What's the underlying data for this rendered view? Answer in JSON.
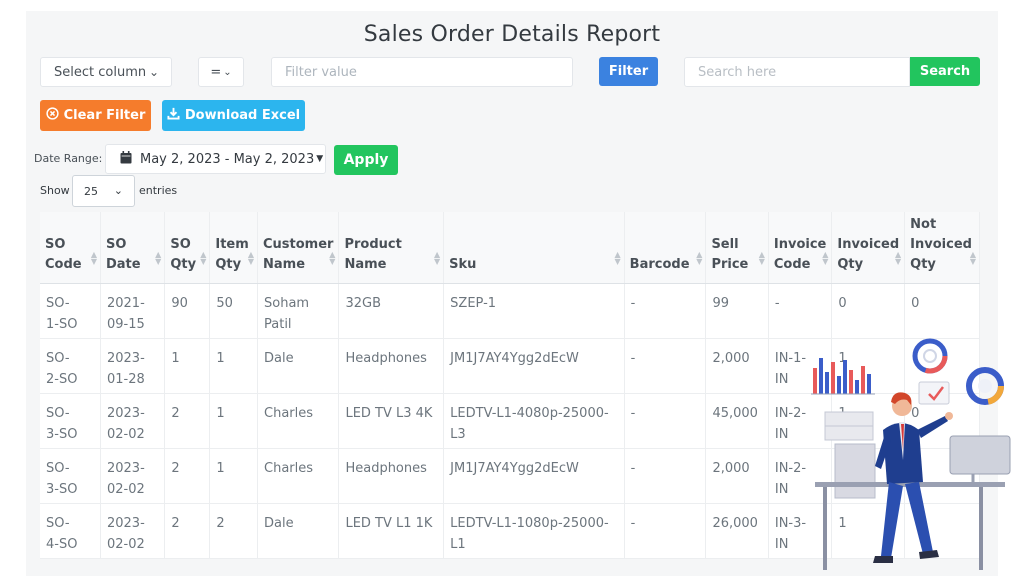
{
  "report": {
    "title": "Sales Order Details Report"
  },
  "filters": {
    "column_select": "Select column",
    "operator": "=",
    "filter_placeholder": "Filter value",
    "filter_button": "Filter",
    "search_placeholder": "Search here",
    "search_button": "Search",
    "clear_button": "Clear Filter",
    "download_button": "Download Excel"
  },
  "date_range": {
    "label": "Date Range:",
    "value": "May 2, 2023 - May 2, 2023",
    "apply_button": "Apply"
  },
  "pagination": {
    "show_label": "Show",
    "page_size": "25",
    "entries_label": "entries"
  },
  "colors": {
    "filter": "#3b82e0",
    "search": "#22c55e",
    "clear": "#f57c2c",
    "download": "#2cb5ee",
    "apply": "#22c55e"
  },
  "table": {
    "columns": [
      [
        "SO",
        "Code"
      ],
      [
        "SO Date"
      ],
      [
        "SO",
        "Qty"
      ],
      [
        "Item",
        "Qty"
      ],
      [
        "Customer",
        "Name"
      ],
      [
        "Product Name"
      ],
      [
        "Sku"
      ],
      [
        "Barcode"
      ],
      [
        "Sell",
        "Price"
      ],
      [
        "Invoice",
        "Code"
      ],
      [
        "Invoiced",
        "Qty"
      ],
      [
        "Not",
        "Invoiced",
        "Qty"
      ]
    ],
    "rows": [
      [
        [
          "SO-",
          "1-SO"
        ],
        [
          "2021-",
          "09-15"
        ],
        [
          "90"
        ],
        [
          "50"
        ],
        [
          "Soham",
          "Patil"
        ],
        [
          "32GB"
        ],
        [
          "SZEP-1"
        ],
        [
          "-"
        ],
        [
          "99"
        ],
        [
          "-"
        ],
        [
          "0"
        ],
        [
          "0"
        ]
      ],
      [
        [
          "SO-",
          "2-SO"
        ],
        [
          "2023-",
          "01-28"
        ],
        [
          "1"
        ],
        [
          "1"
        ],
        [
          "Dale"
        ],
        [
          "Headphones"
        ],
        [
          "JM1J7AY4Ygg2dEcW"
        ],
        [
          "-"
        ],
        [
          "2,000"
        ],
        [
          "IN-1-",
          "IN"
        ],
        [
          "1"
        ],
        [
          ""
        ]
      ],
      [
        [
          "SO-",
          "3-SO"
        ],
        [
          "2023-",
          "02-02"
        ],
        [
          "2"
        ],
        [
          "1"
        ],
        [
          "Charles"
        ],
        [
          "LED TV L3 4K"
        ],
        [
          "LEDTV-L1-4080p-25000-",
          "L3"
        ],
        [
          "-"
        ],
        [
          "45,000"
        ],
        [
          "IN-2-",
          "IN"
        ],
        [
          "1"
        ],
        [
          "0"
        ]
      ],
      [
        [
          "SO-",
          "3-SO"
        ],
        [
          "2023-",
          "02-02"
        ],
        [
          "2"
        ],
        [
          "1"
        ],
        [
          "Charles"
        ],
        [
          "Headphones"
        ],
        [
          "JM1J7AY4Ygg2dEcW"
        ],
        [
          "-"
        ],
        [
          "2,000"
        ],
        [
          "IN-2-",
          "IN"
        ],
        [
          ""
        ],
        [
          ""
        ]
      ],
      [
        [
          "SO-",
          "4-SO"
        ],
        [
          "2023-",
          "02-02"
        ],
        [
          "2"
        ],
        [
          "2"
        ],
        [
          "Dale"
        ],
        [
          "LED TV L1 1K"
        ],
        [
          "LEDTV-L1-1080p-25000-",
          "L1"
        ],
        [
          "-"
        ],
        [
          "26,000"
        ],
        [
          "IN-3-",
          "IN"
        ],
        [
          "1"
        ],
        [
          ""
        ]
      ]
    ]
  },
  "icons": {
    "chevron": "chevron-down-icon",
    "clear": "times-circle-icon",
    "download": "download-icon",
    "calendar": "calendar-icon",
    "sort": "sort-icon"
  }
}
